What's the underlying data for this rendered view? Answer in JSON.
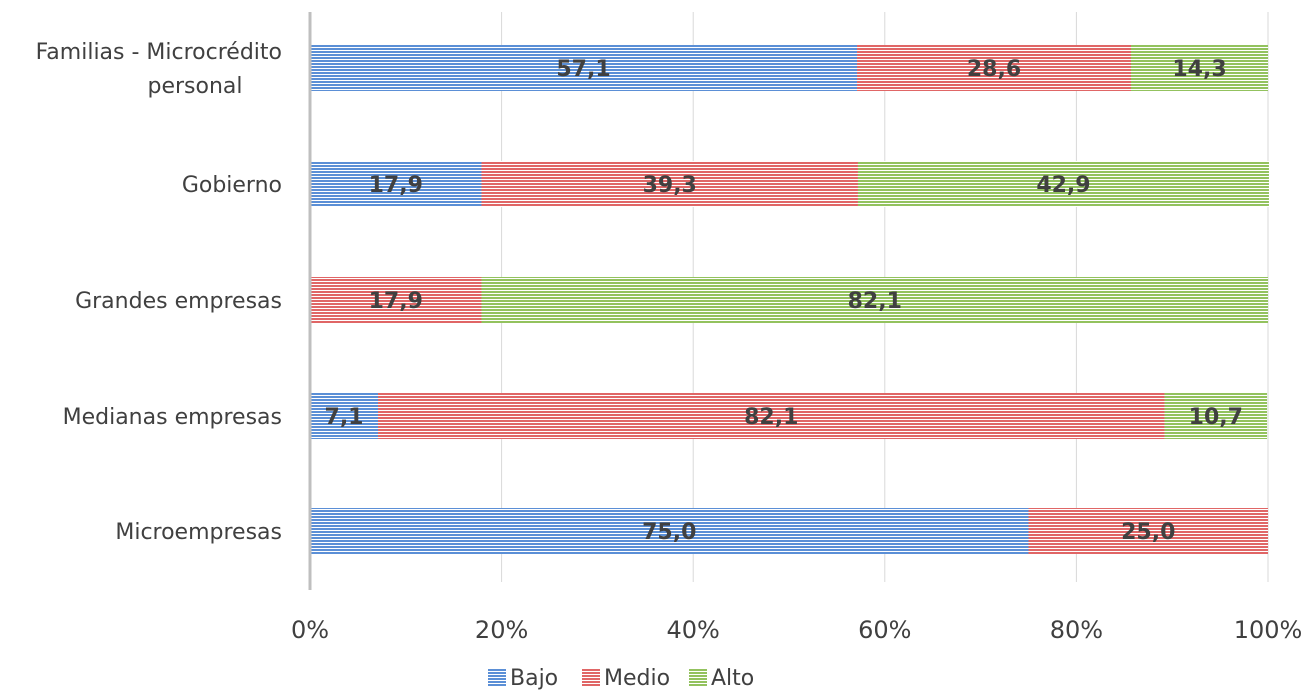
{
  "chart_data": {
    "type": "bar",
    "orientation": "horizontal",
    "stacked": "percent",
    "categories": [
      [
        "Familias - Microcrédito",
        "personal"
      ],
      [
        "Gobierno"
      ],
      [
        "Grandes empresas"
      ],
      [
        "Medianas empresas"
      ],
      [
        "Microempresas"
      ]
    ],
    "series": [
      {
        "name": "Bajo",
        "color": "#5b8fd6",
        "values": [
          57.1,
          17.9,
          0,
          7.1,
          75.0
        ],
        "labels": [
          "57,1",
          "17,9",
          "",
          "7,1",
          "75,0"
        ]
      },
      {
        "name": "Medio",
        "color": "#e06666",
        "values": [
          28.6,
          39.3,
          17.9,
          82.1,
          25.0
        ],
        "labels": [
          "28,6",
          "39,3",
          "17,9",
          "82,1",
          "25,0"
        ]
      },
      {
        "name": "Alto",
        "color": "#93c25e",
        "values": [
          14.3,
          42.9,
          82.1,
          10.7,
          0
        ],
        "labels": [
          "14,3",
          "42,9",
          "82,1",
          "10,7",
          ""
        ]
      }
    ],
    "x_ticks": [
      "0%",
      "20%",
      "40%",
      "60%",
      "80%",
      "100%"
    ],
    "xlim": [
      0,
      100
    ],
    "grid": "vertical",
    "legend": "bottom"
  }
}
